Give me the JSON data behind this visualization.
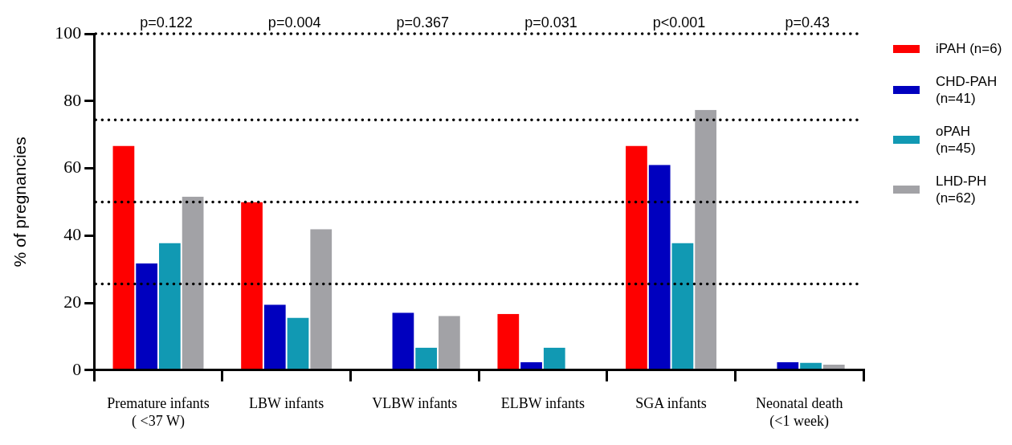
{
  "chart_data": {
    "type": "bar",
    "categories": [
      "Premature infants\n( <37 W)",
      "LBW infants",
      "VLBW infants",
      "ELBW infants",
      "SGA infants",
      "Neonatal death\n(<1 week)"
    ],
    "series": [
      {
        "name": "iPAH (n=6)",
        "color": "#fe0000",
        "values": [
          66.7,
          50,
          0,
          16.7,
          66.7,
          0
        ]
      },
      {
        "name": "CHD-PAH (n=41)",
        "color": "#0000bf",
        "values": [
          31.7,
          19.5,
          17.1,
          2.4,
          61.0,
          2.4
        ]
      },
      {
        "name": "oPAH (n=45)",
        "color": "#1199b3",
        "values": [
          37.8,
          15.6,
          6.7,
          6.7,
          37.8,
          2.2
        ]
      },
      {
        "name": "LHD-PH (n=62)",
        "color": "#a2a2a6",
        "values": [
          51.6,
          41.9,
          16.1,
          0,
          77.4,
          1.6
        ]
      }
    ],
    "ylabel": "% of pregnancies",
    "ylim": [
      0,
      100
    ],
    "yticks": [
      0,
      20,
      40,
      60,
      80,
      100
    ],
    "annotations": [
      "p=0.122",
      "p=0.004",
      "p=0.367",
      "p=0.031",
      "p<0.001",
      "p=0.43"
    ],
    "ref_lines": [
      {
        "axis": "y",
        "value": 100,
        "color": "#000000",
        "line_style": "dotted"
      },
      {
        "axis": "y",
        "value": 74.4,
        "color": "#000000",
        "line_style": "dotted"
      },
      {
        "axis": "y",
        "value": 50,
        "color": "#000000",
        "line_style": "dotted"
      },
      {
        "axis": "y",
        "value": 25.6,
        "color": "#000000",
        "line_style": "dotted"
      }
    ],
    "grid": false,
    "legend": "right"
  }
}
